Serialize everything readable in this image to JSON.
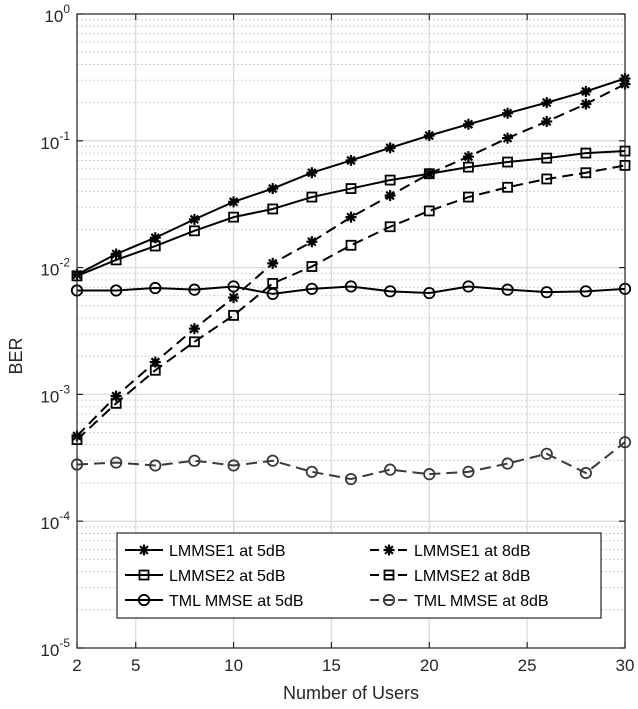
{
  "chart_data": {
    "type": "line",
    "title": "",
    "xlabel": "Number of Users",
    "ylabel": "BER",
    "xlim": [
      2,
      30
    ],
    "ylim": [
      1e-05,
      1
    ],
    "yscale": "log",
    "grid": true,
    "minor_grid": true,
    "legend_position": "bottom-center",
    "legend_columns": 2,
    "x": [
      2,
      4,
      6,
      8,
      10,
      12,
      14,
      16,
      18,
      20,
      22,
      24,
      26,
      28,
      30
    ],
    "xticks": [
      "2",
      "5",
      "10",
      "15",
      "20",
      "25",
      "30"
    ],
    "yticks": [
      {
        "base": "10",
        "exp": "0"
      },
      {
        "base": "10",
        "exp": "-1"
      },
      {
        "base": "10",
        "exp": "-2"
      },
      {
        "base": "10",
        "exp": "-3"
      },
      {
        "base": "10",
        "exp": "-4"
      },
      {
        "base": "10",
        "exp": "-5"
      }
    ],
    "series": [
      {
        "name": "LMMSE1 at 5dB",
        "color": "#000000",
        "dash": "solid",
        "marker": "asterisk",
        "values": [
          0.0088,
          0.0128,
          0.0172,
          0.024,
          0.033,
          0.042,
          0.056,
          0.07,
          0.088,
          0.11,
          0.135,
          0.165,
          0.2,
          0.245,
          0.31
        ]
      },
      {
        "name": "LMMSE2 at 5dB",
        "color": "#000000",
        "dash": "solid",
        "marker": "square",
        "values": [
          0.0086,
          0.0115,
          0.0148,
          0.0195,
          0.025,
          0.029,
          0.036,
          0.042,
          0.049,
          0.055,
          0.062,
          0.068,
          0.073,
          0.08,
          0.083
        ]
      },
      {
        "name": "TML MMSE at 5dB",
        "color": "#000000",
        "dash": "solid",
        "marker": "circle",
        "values": [
          0.0066,
          0.0066,
          0.0069,
          0.0067,
          0.0071,
          0.0062,
          0.0068,
          0.0071,
          0.0065,
          0.0063,
          0.0071,
          0.0067,
          0.0064,
          0.0065,
          0.0068
        ]
      },
      {
        "name": "LMMSE1 at 8dB",
        "color": "#000000",
        "dash": "dashed",
        "marker": "asterisk",
        "values": [
          0.00047,
          0.00097,
          0.0018,
          0.0033,
          0.0058,
          0.0108,
          0.016,
          0.025,
          0.037,
          0.055,
          0.075,
          0.105,
          0.142,
          0.195,
          0.28
        ]
      },
      {
        "name": "LMMSE2 at 8dB",
        "color": "#000000",
        "dash": "dashed",
        "marker": "square",
        "values": [
          0.00044,
          0.00085,
          0.00155,
          0.0026,
          0.0042,
          0.0075,
          0.0102,
          0.015,
          0.021,
          0.028,
          0.036,
          0.043,
          0.05,
          0.056,
          0.064
        ]
      },
      {
        "name": "TML MMSE at 8dB",
        "color": "#3a3a3a",
        "dash": "dashed",
        "marker": "circle",
        "values": [
          0.00028,
          0.00029,
          0.000275,
          0.0003,
          0.000275,
          0.0003,
          0.000245,
          0.000215,
          0.000255,
          0.000235,
          0.000245,
          0.000285,
          0.00034,
          0.00024,
          0.00042
        ]
      }
    ]
  }
}
